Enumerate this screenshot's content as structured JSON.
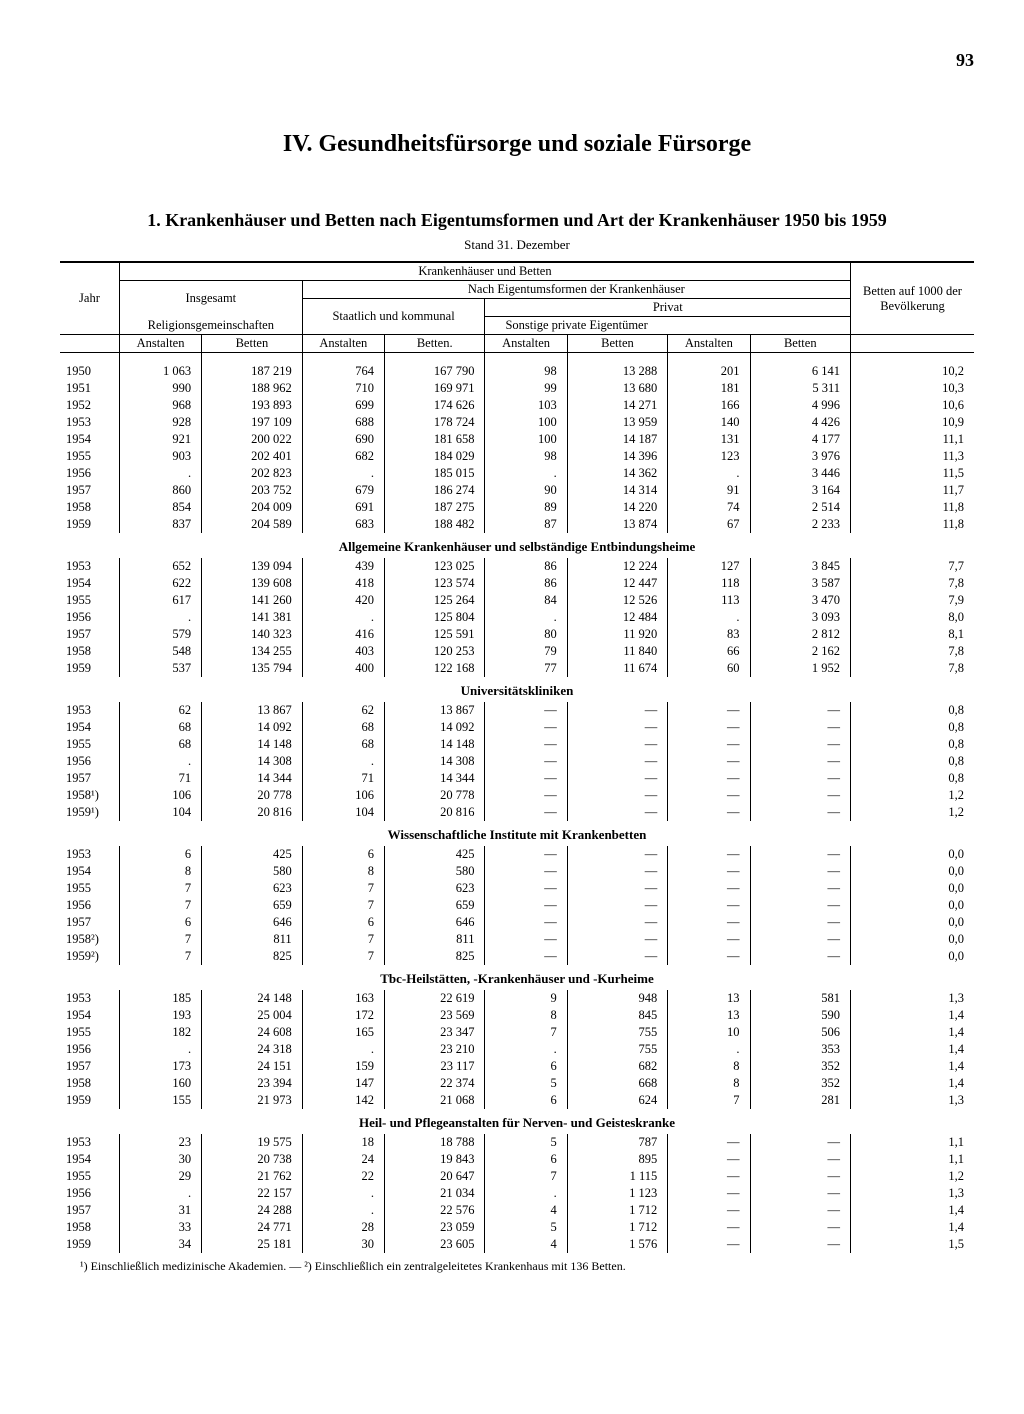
{
  "page_number": "93",
  "chapter_title": "IV. Gesundheitsfürsorge und soziale Fürsorge",
  "table_title": "1. Krankenhäuser und Betten nach Eigentumsformen und Art der Krankenhäuser 1950 bis 1959",
  "stand": "Stand 31. Dezember",
  "headers": {
    "main_span": "Krankenhäuser und Betten",
    "eigentum_span": "Nach Eigentumsformen der Krankenhäuser",
    "jahr": "Jahr",
    "insgesamt": "Insgesamt",
    "staatlich": "Staatlich und kommunal",
    "privat": "Privat",
    "religion": "Religionsgemeinschaften",
    "sonstige": "Sonstige private Eigentümer",
    "betten_1000": "Betten auf 1000 der Bevölkerung",
    "anstalten": "Anstalten",
    "betten": "Betten",
    "betten_dot": "Betten."
  },
  "sections": [
    {
      "rows": [
        [
          "1950",
          "1 063",
          "187 219",
          "764",
          "167 790",
          "98",
          "13 288",
          "201",
          "6 141",
          "10,2"
        ],
        [
          "1951",
          "990",
          "188 962",
          "710",
          "169 971",
          "99",
          "13 680",
          "181",
          "5 311",
          "10,3"
        ],
        [
          "1952",
          "968",
          "193 893",
          "699",
          "174 626",
          "103",
          "14 271",
          "166",
          "4 996",
          "10,6"
        ],
        [
          "1953",
          "928",
          "197 109",
          "688",
          "178 724",
          "100",
          "13 959",
          "140",
          "4 426",
          "10,9"
        ],
        [
          "1954",
          "921",
          "200 022",
          "690",
          "181 658",
          "100",
          "14 187",
          "131",
          "4 177",
          "11,1"
        ],
        [
          "1955",
          "903",
          "202 401",
          "682",
          "184 029",
          "98",
          "14 396",
          "123",
          "3 976",
          "11,3"
        ],
        [
          "1956",
          ".",
          "202 823",
          ".",
          "185 015",
          ".",
          "14 362",
          ".",
          "3 446",
          "11,5"
        ],
        [
          "1957",
          "860",
          "203 752",
          "679",
          "186 274",
          "90",
          "14 314",
          "91",
          "3 164",
          "11,7"
        ],
        [
          "1958",
          "854",
          "204 009",
          "691",
          "187 275",
          "89",
          "14 220",
          "74",
          "2 514",
          "11,8"
        ],
        [
          "1959",
          "837",
          "204 589",
          "683",
          "188 482",
          "87",
          "13 874",
          "67",
          "2 233",
          "11,8"
        ]
      ]
    },
    {
      "title": "Allgemeine Krankenhäuser und selbständige Entbindungsheime",
      "rows": [
        [
          "1953",
          "652",
          "139 094",
          "439",
          "123 025",
          "86",
          "12 224",
          "127",
          "3 845",
          "7,7"
        ],
        [
          "1954",
          "622",
          "139 608",
          "418",
          "123 574",
          "86",
          "12 447",
          "118",
          "3 587",
          "7,8"
        ],
        [
          "1955",
          "617",
          "141 260",
          "420",
          "125 264",
          "84",
          "12 526",
          "113",
          "3 470",
          "7,9"
        ],
        [
          "1956",
          ".",
          "141 381",
          ".",
          "125 804",
          ".",
          "12 484",
          ".",
          "3 093",
          "8,0"
        ],
        [
          "1957",
          "579",
          "140 323",
          "416",
          "125 591",
          "80",
          "11 920",
          "83",
          "2 812",
          "8,1"
        ],
        [
          "1958",
          "548",
          "134 255",
          "403",
          "120 253",
          "79",
          "11 840",
          "66",
          "2 162",
          "7,8"
        ],
        [
          "1959",
          "537",
          "135 794",
          "400",
          "122 168",
          "77",
          "11 674",
          "60",
          "1 952",
          "7,8"
        ]
      ]
    },
    {
      "title": "Universitätskliniken",
      "rows": [
        [
          "1953",
          "62",
          "13 867",
          "62",
          "13 867",
          "—",
          "—",
          "—",
          "—",
          "0,8"
        ],
        [
          "1954",
          "68",
          "14 092",
          "68",
          "14 092",
          "—",
          "—",
          "—",
          "—",
          "0,8"
        ],
        [
          "1955",
          "68",
          "14 148",
          "68",
          "14 148",
          "—",
          "—",
          "—",
          "—",
          "0,8"
        ],
        [
          "1956",
          ".",
          "14 308",
          ".",
          "14 308",
          "—",
          "—",
          "—",
          "—",
          "0,8"
        ],
        [
          "1957",
          "71",
          "14 344",
          "71",
          "14 344",
          "—",
          "—",
          "—",
          "—",
          "0,8"
        ],
        [
          "1958¹)",
          "106",
          "20 778",
          "106",
          "20 778",
          "—",
          "—",
          "—",
          "—",
          "1,2"
        ],
        [
          "1959¹)",
          "104",
          "20 816",
          "104",
          "20 816",
          "—",
          "—",
          "—",
          "—",
          "1,2"
        ]
      ]
    },
    {
      "title": "Wissenschaftliche Institute mit Krankenbetten",
      "rows": [
        [
          "1953",
          "6",
          "425",
          "6",
          "425",
          "—",
          "—",
          "—",
          "—",
          "0,0"
        ],
        [
          "1954",
          "8",
          "580",
          "8",
          "580",
          "—",
          "—",
          "—",
          "—",
          "0,0"
        ],
        [
          "1955",
          "7",
          "623",
          "7",
          "623",
          "—",
          "—",
          "—",
          "—",
          "0,0"
        ],
        [
          "1956",
          "7",
          "659",
          "7",
          "659",
          "—",
          "—",
          "—",
          "—",
          "0,0"
        ],
        [
          "1957",
          "6",
          "646",
          "6",
          "646",
          "—",
          "—",
          "—",
          "—",
          "0,0"
        ],
        [
          "1958²)",
          "7",
          "811",
          "7",
          "811",
          "—",
          "—",
          "—",
          "—",
          "0,0"
        ],
        [
          "1959²)",
          "7",
          "825",
          "7",
          "825",
          "—",
          "—",
          "—",
          "—",
          "0,0"
        ]
      ]
    },
    {
      "title": "Tbc-Heilstätten, -Krankenhäuser und -Kurheime",
      "rows": [
        [
          "1953",
          "185",
          "24 148",
          "163",
          "22 619",
          "9",
          "948",
          "13",
          "581",
          "1,3"
        ],
        [
          "1954",
          "193",
          "25 004",
          "172",
          "23 569",
          "8",
          "845",
          "13",
          "590",
          "1,4"
        ],
        [
          "1955",
          "182",
          "24 608",
          "165",
          "23 347",
          "7",
          "755",
          "10",
          "506",
          "1,4"
        ],
        [
          "1956",
          ".",
          "24 318",
          ".",
          "23 210",
          ".",
          "755",
          ".",
          "353",
          "1,4"
        ],
        [
          "1957",
          "173",
          "24 151",
          "159",
          "23 117",
          "6",
          "682",
          "8",
          "352",
          "1,4"
        ],
        [
          "1958",
          "160",
          "23 394",
          "147",
          "22 374",
          "5",
          "668",
          "8",
          "352",
          "1,4"
        ],
        [
          "1959",
          "155",
          "21 973",
          "142",
          "21 068",
          "6",
          "624",
          "7",
          "281",
          "1,3"
        ]
      ]
    },
    {
      "title": "Heil- und Pflegeanstalten für Nerven- und Geisteskranke",
      "rows": [
        [
          "1953",
          "23",
          "19 575",
          "18",
          "18 788",
          "5",
          "787",
          "—",
          "—",
          "1,1"
        ],
        [
          "1954",
          "30",
          "20 738",
          "24",
          "19 843",
          "6",
          "895",
          "—",
          "—",
          "1,1"
        ],
        [
          "1955",
          "29",
          "21 762",
          "22",
          "20 647",
          "7",
          "1 115",
          "—",
          "—",
          "1,2"
        ],
        [
          "1956",
          ".",
          "22 157",
          ".",
          "21 034",
          ".",
          "1 123",
          "—",
          "—",
          "1,3"
        ],
        [
          "1957",
          "31",
          "24 288",
          ".",
          "22 576",
          "4",
          "1 712",
          "—",
          "—",
          "1,4"
        ],
        [
          "1958",
          "33",
          "24 771",
          "28",
          "23 059",
          "5",
          "1 712",
          "—",
          "—",
          "1,4"
        ],
        [
          "1959",
          "34",
          "25 181",
          "30",
          "23 605",
          "4",
          "1 576",
          "—",
          "—",
          "1,5"
        ]
      ]
    }
  ],
  "footnote": "¹) Einschließlich medizinische Akademien. — ²) Einschließlich ein zentralgeleitetes Krankenhaus mit 136 Betten."
}
